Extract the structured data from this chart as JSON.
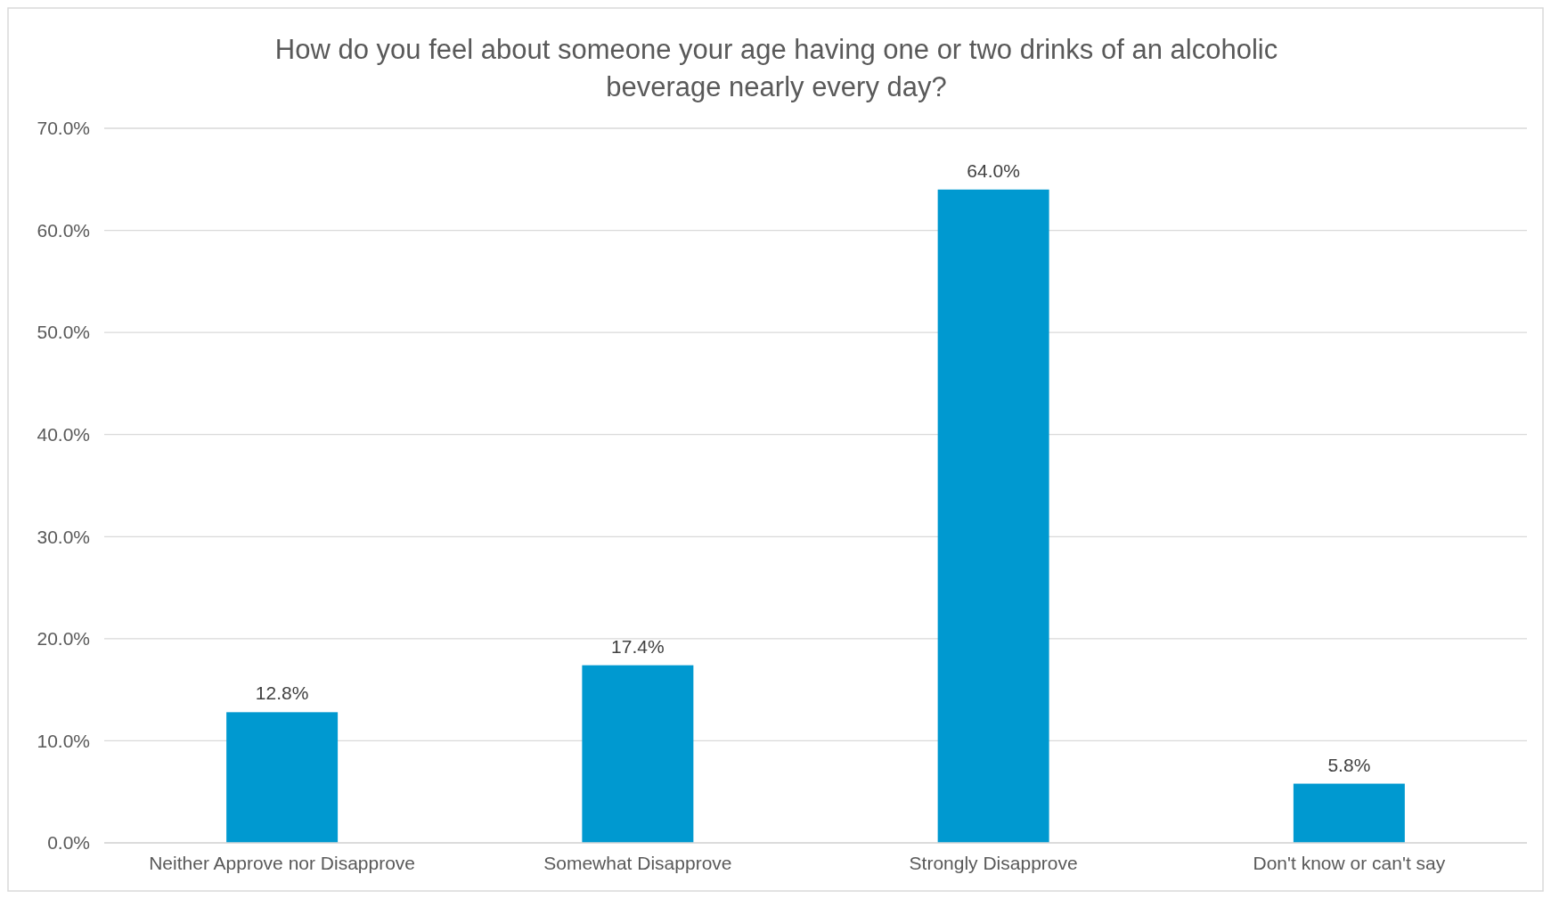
{
  "chart_data": {
    "type": "bar",
    "title": "How do you feel about someone your age having one or two drinks of an alcoholic beverage nearly every day?",
    "categories": [
      "Neither Approve nor Disapprove",
      "Somewhat Disapprove",
      "Strongly Disapprove",
      "Don't know or can't say"
    ],
    "values": [
      12.8,
      17.4,
      64.0,
      5.8
    ],
    "value_labels": [
      "12.8%",
      "17.4%",
      "64.0%",
      "5.8%"
    ],
    "color": "#0099d0",
    "ylim": [
      0,
      70
    ],
    "yticks": [
      {
        "value": 0,
        "label": "0.0%"
      },
      {
        "value": 10,
        "label": "10.0%"
      },
      {
        "value": 20,
        "label": "20.0%"
      },
      {
        "value": 30,
        "label": "30.0%"
      },
      {
        "value": 40,
        "label": "40.0%"
      },
      {
        "value": 50,
        "label": "50.0%"
      },
      {
        "value": 60,
        "label": "60.0%"
      },
      {
        "value": 70,
        "label": "70.0%"
      }
    ],
    "grid": "y"
  }
}
